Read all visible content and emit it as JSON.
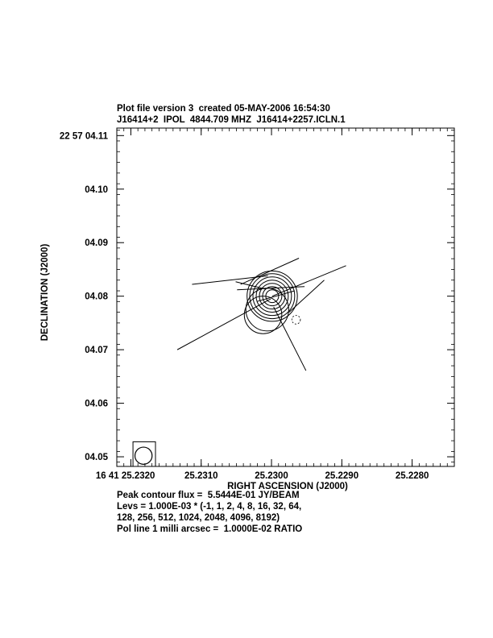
{
  "header": {
    "line1": "Plot file version 3  created 05-MAY-2006 16:54:30",
    "line2": "J16414+2  IPOL  4844.709 MHZ  J16414+2257.ICLN.1"
  },
  "footer": {
    "line1": "Peak contour flux =  5.5444E-01 JY/BEAM",
    "line2": "Levs = 1.000E-03 * (-1, 1, 2, 4, 8, 16, 32, 64,",
    "line3": "128, 256, 512, 1024, 2048, 4096, 8192)",
    "line4": "Pol line 1 milli arcsec =  1.0000E-02 RATIO"
  },
  "chart_data": {
    "type": "contour",
    "xlabel": "RIGHT ASCENSION (J2000)",
    "ylabel": "DECLINATION (J2000)",
    "xlim": [
      25.2322,
      25.2274
    ],
    "ylim": [
      4.0482,
      4.1114
    ],
    "x_ticks": [
      {
        "value": 25.232,
        "label": "16 41 25.2320"
      },
      {
        "value": 25.231,
        "label": "25.2310"
      },
      {
        "value": 25.23,
        "label": "25.2300"
      },
      {
        "value": 25.229,
        "label": "25.2290"
      },
      {
        "value": 25.228,
        "label": "25.2280"
      }
    ],
    "y_ticks": [
      {
        "value": 4.11,
        "label": "22 57 04.11"
      },
      {
        "value": 4.1,
        "label": "04.10"
      },
      {
        "value": 4.09,
        "label": "04.09"
      },
      {
        "value": 4.08,
        "label": "04.08"
      },
      {
        "value": 4.07,
        "label": "04.07"
      },
      {
        "value": 4.06,
        "label": "04.06"
      },
      {
        "value": 4.05,
        "label": "04.05"
      }
    ],
    "source_center": {
      "x": 25.22999,
      "y": 4.08
    },
    "contour_semi_axes": [
      {
        "rx": 0.00014,
        "ry": 0.0012
      },
      {
        "rx": 0.00021,
        "ry": 0.0018
      },
      {
        "rx": 0.00028,
        "ry": 0.0024
      },
      {
        "rx": 0.00035,
        "ry": 0.003
      },
      {
        "rx": 0.00042,
        "ry": 0.0036
      },
      {
        "rx": 0.00049,
        "ry": 0.0042
      },
      {
        "rx": 0.00055,
        "ry": 0.0047
      }
    ],
    "extended_contours": [
      {
        "cx": 25.23006,
        "cy": 4.0775,
        "rx": 0.00065,
        "ry": 0.004
      },
      {
        "cx": 25.23012,
        "cy": 4.0765,
        "rx": 0.00075,
        "ry": 0.0035
      }
    ],
    "negative_contour": {
      "cx": 25.22965,
      "cy": 4.0756,
      "rx": 7e-05,
      "ry": 0.0008
    },
    "pol_vectors": [
      {
        "x1": 25.23134,
        "y1": 4.07,
        "x2": 25.23001,
        "y2": 4.0795
      },
      {
        "x1": 25.22999,
        "y1": 4.08,
        "x2": 25.22894,
        "y2": 4.0857
      },
      {
        "x1": 25.23044,
        "y1": 4.0822,
        "x2": 25.22961,
        "y2": 4.0871
      },
      {
        "x1": 25.23113,
        "y1": 4.0822,
        "x2": 25.23005,
        "y2": 4.0838
      },
      {
        "x1": 25.23051,
        "y1": 4.0827,
        "x2": 25.23008,
        "y2": 4.0813
      },
      {
        "x1": 25.23049,
        "y1": 4.0812,
        "x2": 25.22953,
        "y2": 4.0818
      },
      {
        "x1": 25.22997,
        "y1": 4.078,
        "x2": 25.22951,
        "y2": 4.0661
      },
      {
        "x1": 25.22975,
        "y1": 4.077,
        "x2": 25.22925,
        "y2": 4.083
      },
      {
        "x1": 25.23021,
        "y1": 4.079,
        "x2": 25.22967,
        "y2": 4.081
      }
    ],
    "beam": {
      "cx": 25.23182,
      "cy": 4.0502,
      "rx": 0.00013,
      "ry": 0.0016,
      "box_x": [
        25.23197,
        25.23165
      ],
      "box_y": [
        4.0482,
        4.0528
      ]
    }
  }
}
